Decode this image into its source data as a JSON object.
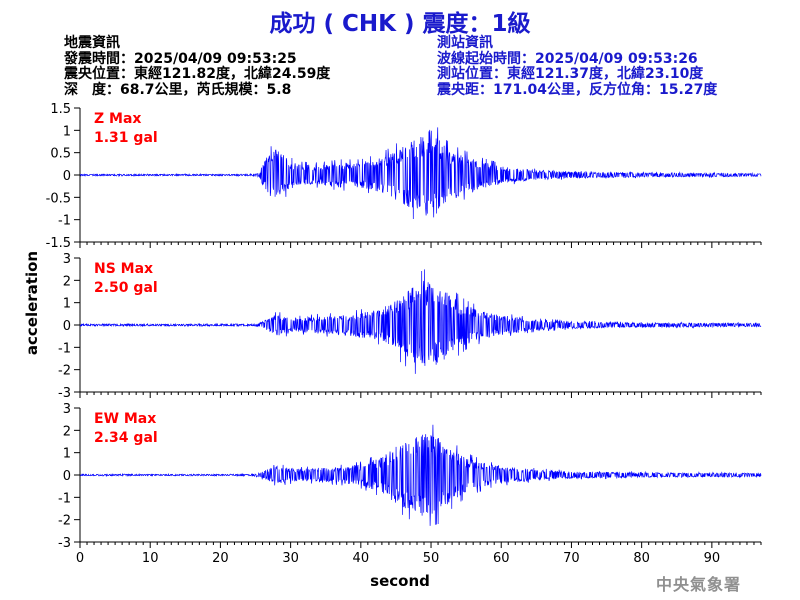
{
  "title": "成功 ( CHK ) 震度：1級",
  "info_left": {
    "heading": "地震資訊",
    "origin_time": "發震時間：2025/04/09 09:53:25",
    "epicenter": "震央位置：東經121.82度，北緯24.59度",
    "depth_magnitude": "深　度：68.7公里，芮氏規模：5.8"
  },
  "info_right": {
    "heading": "測站資訊",
    "wave_onset": "波線起始時間：2025/04/09 09:53:26",
    "station_location": "測站位置：東經121.37度，北緯23.10度",
    "distance_azimuth": "震央距：171.04公里，反方位角：15.27度"
  },
  "agency": "中央氣象署",
  "colors": {
    "title": "#1a1acc",
    "trace": "#0000ff",
    "max_label": "#ff0000",
    "axis": "#000000"
  },
  "chart_data": {
    "type": "line",
    "xlabel": "second",
    "ylabel": "acceleration",
    "xlim": [
      0,
      97
    ],
    "x_ticks": [
      0,
      10,
      20,
      30,
      40,
      50,
      60,
      70,
      80,
      90
    ],
    "grid": false,
    "series": [
      {
        "name": "Z",
        "max_label": "Z Max",
        "max_value": "1.31 gal",
        "ylim": [
          -1.5,
          1.5
        ],
        "y_ticks": [
          -1.5,
          -1,
          -0.5,
          0,
          0.5,
          1,
          1.5
        ],
        "y_tick_labels": [
          "-1.5",
          "-1",
          "-0.5",
          "0",
          "0.5",
          "1",
          "1.5"
        ],
        "peak": 1.31,
        "envelope": [
          [
            0,
            0.02
          ],
          [
            24,
            0.02
          ],
          [
            25.5,
            0.05
          ],
          [
            26.5,
            0.5
          ],
          [
            28,
            0.8
          ],
          [
            29.5,
            0.45
          ],
          [
            31,
            0.3
          ],
          [
            34,
            0.28
          ],
          [
            37,
            0.35
          ],
          [
            40,
            0.35
          ],
          [
            43,
            0.5
          ],
          [
            46,
            0.8
          ],
          [
            48,
            1.05
          ],
          [
            50,
            1.31
          ],
          [
            52,
            0.8
          ],
          [
            54,
            0.6
          ],
          [
            57,
            0.4
          ],
          [
            60,
            0.25
          ],
          [
            64,
            0.15
          ],
          [
            70,
            0.09
          ],
          [
            80,
            0.06
          ],
          [
            90,
            0.05
          ],
          [
            97,
            0.04
          ]
        ]
      },
      {
        "name": "NS",
        "max_label": "NS Max",
        "max_value": "2.50 gal",
        "ylim": [
          -3,
          3
        ],
        "y_ticks": [
          -3,
          -2,
          -1,
          0,
          1,
          2,
          3
        ],
        "y_tick_labels": [
          "-3",
          "-2",
          "-1",
          "0",
          "1",
          "2",
          "3"
        ],
        "peak": 2.5,
        "envelope": [
          [
            0,
            0.05
          ],
          [
            24,
            0.05
          ],
          [
            25.5,
            0.1
          ],
          [
            26.5,
            0.3
          ],
          [
            28,
            0.6
          ],
          [
            31,
            0.4
          ],
          [
            34,
            0.5
          ],
          [
            37,
            0.55
          ],
          [
            40,
            0.7
          ],
          [
            43,
            0.9
          ],
          [
            45,
            1.5
          ],
          [
            47,
            2.0
          ],
          [
            49,
            2.5
          ],
          [
            51,
            2.2
          ],
          [
            53,
            1.6
          ],
          [
            55,
            1.1
          ],
          [
            58,
            0.7
          ],
          [
            61,
            0.5
          ],
          [
            65,
            0.3
          ],
          [
            70,
            0.2
          ],
          [
            80,
            0.12
          ],
          [
            97,
            0.1
          ]
        ]
      },
      {
        "name": "EW",
        "max_label": "EW Max",
        "max_value": "2.34 gal",
        "ylim": [
          -3,
          3
        ],
        "y_ticks": [
          -3,
          -2,
          -1,
          0,
          1,
          2,
          3
        ],
        "y_tick_labels": [
          "-3",
          "-2",
          "-1",
          "0",
          "1",
          "2",
          "3"
        ],
        "peak": 2.34,
        "envelope": [
          [
            0,
            0.04
          ],
          [
            24,
            0.04
          ],
          [
            25.5,
            0.1
          ],
          [
            26.5,
            0.3
          ],
          [
            28,
            0.5
          ],
          [
            31,
            0.35
          ],
          [
            34,
            0.4
          ],
          [
            37,
            0.45
          ],
          [
            40,
            0.6
          ],
          [
            43,
            1.0
          ],
          [
            45,
            1.6
          ],
          [
            47,
            2.0
          ],
          [
            49,
            2.34
          ],
          [
            51,
            2.2
          ],
          [
            53,
            1.5
          ],
          [
            55,
            1.0
          ],
          [
            58,
            0.6
          ],
          [
            61,
            0.45
          ],
          [
            65,
            0.3
          ],
          [
            70,
            0.2
          ],
          [
            80,
            0.13
          ],
          [
            97,
            0.1
          ]
        ]
      }
    ]
  }
}
